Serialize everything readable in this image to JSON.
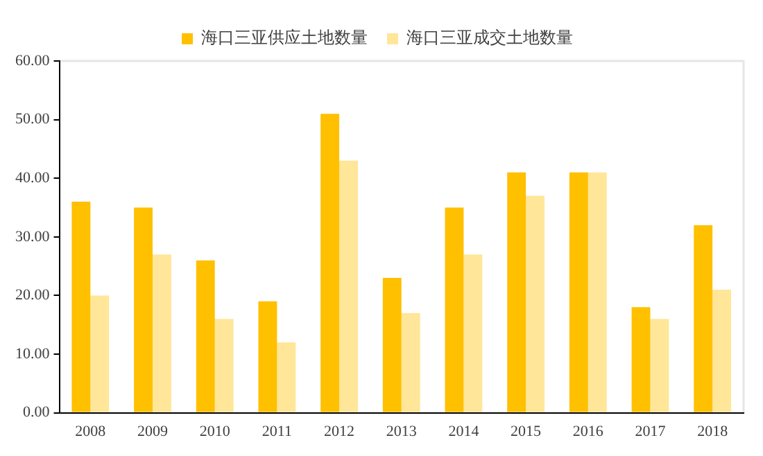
{
  "chart_data": {
    "type": "bar",
    "categories": [
      "2008",
      "2009",
      "2010",
      "2011",
      "2012",
      "2013",
      "2014",
      "2015",
      "2016",
      "2017",
      "2018"
    ],
    "series": [
      {
        "name": "海口三亚供应土地数量",
        "color": "#ffc000",
        "values": [
          36,
          35,
          26,
          19,
          51,
          23,
          35,
          41,
          41,
          18,
          32
        ]
      },
      {
        "name": "海口三亚成交土地数量",
        "color": "#ffe699",
        "values": [
          20,
          27,
          16,
          12,
          43,
          17,
          27,
          37,
          41,
          16,
          21
        ]
      }
    ],
    "ylim": [
      0,
      60
    ],
    "yticks": [
      {
        "value": 0,
        "label": "0.00"
      },
      {
        "value": 10,
        "label": "10.00"
      },
      {
        "value": 20,
        "label": "20.00"
      },
      {
        "value": 30,
        "label": "30.00"
      },
      {
        "value": 40,
        "label": "40.00"
      },
      {
        "value": 50,
        "label": "50.00"
      },
      {
        "value": 60,
        "label": "60.00"
      }
    ],
    "grid": false,
    "legend": "top"
  }
}
